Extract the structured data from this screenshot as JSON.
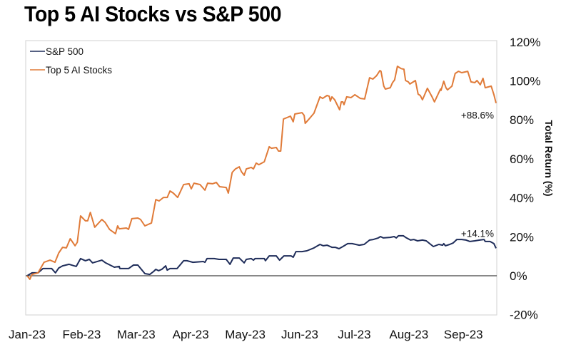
{
  "chart_data": {
    "type": "line",
    "title": "Top 5 AI Stocks vs S&P 500",
    "xlabel": "",
    "ylabel": "Total Return (%)",
    "ylim": [
      -20,
      120
    ],
    "yticks": [
      -20,
      0,
      20,
      40,
      60,
      80,
      100,
      120
    ],
    "ytick_labels": [
      "-20%",
      "0%",
      "20%",
      "40%",
      "60%",
      "80%",
      "100%",
      "120%"
    ],
    "x_unit": "months since Jan-23",
    "xlim": [
      0,
      8.6
    ],
    "xticks": [
      0,
      1,
      2,
      3,
      4,
      5,
      6,
      7,
      8
    ],
    "xtick_labels": [
      "Jan-23",
      "Feb-23",
      "Mar-23",
      "Apr-23",
      "May-23",
      "Jun-23",
      "Jul-23",
      "Aug-23",
      "Sep-23"
    ],
    "grid": false,
    "zero_line": true,
    "legend_position": "top-left",
    "series": [
      {
        "name": "S&P 500",
        "color": "#1f2d5a",
        "end_label": "+14.1%",
        "points": [
          [
            0,
            0
          ],
          [
            0.09,
            1.5
          ],
          [
            0.2,
            1.5
          ],
          [
            0.29,
            3.7
          ],
          [
            0.45,
            3.7
          ],
          [
            0.52,
            1.5
          ],
          [
            0.58,
            4.0
          ],
          [
            0.65,
            5.1
          ],
          [
            0.77,
            5.9
          ],
          [
            0.9,
            4.8
          ],
          [
            0.98,
            8.8
          ],
          [
            1.07,
            7.7
          ],
          [
            1.14,
            8.4
          ],
          [
            1.2,
            6.6
          ],
          [
            1.37,
            8.0
          ],
          [
            1.44,
            6.6
          ],
          [
            1.6,
            4.4
          ],
          [
            1.69,
            4.8
          ],
          [
            1.7,
            3.7
          ],
          [
            1.86,
            3.7
          ],
          [
            1.95,
            5.5
          ],
          [
            2.03,
            5.5
          ],
          [
            2.16,
            1.1
          ],
          [
            2.25,
            0.7
          ],
          [
            2.32,
            2.2
          ],
          [
            2.36,
            3.3
          ],
          [
            2.41,
            2.6
          ],
          [
            2.47,
            3.3
          ],
          [
            2.54,
            5.1
          ],
          [
            2.57,
            2.9
          ],
          [
            2.62,
            3.7
          ],
          [
            2.75,
            3.7
          ],
          [
            2.87,
            7.7
          ],
          [
            2.93,
            7.7
          ],
          [
            3.04,
            6.9
          ],
          [
            3.23,
            7.3
          ],
          [
            3.26,
            6.9
          ],
          [
            3.3,
            8.8
          ],
          [
            3.43,
            8.8
          ],
          [
            3.52,
            8.4
          ],
          [
            3.65,
            8.4
          ],
          [
            3.72,
            5.9
          ],
          [
            3.78,
            9.1
          ],
          [
            3.89,
            9.1
          ],
          [
            3.98,
            6.6
          ],
          [
            4.02,
            8.4
          ],
          [
            4.11,
            8.8
          ],
          [
            4.15,
            8.0
          ],
          [
            4.18,
            8.8
          ],
          [
            4.35,
            8.8
          ],
          [
            4.37,
            7.7
          ],
          [
            4.44,
            10.2
          ],
          [
            4.57,
            10.2
          ],
          [
            4.63,
            8.0
          ],
          [
            4.71,
            10.2
          ],
          [
            4.84,
            10.2
          ],
          [
            4.88,
            9.5
          ],
          [
            4.93,
            12.4
          ],
          [
            5.04,
            12.4
          ],
          [
            5.13,
            12.8
          ],
          [
            5.26,
            14.3
          ],
          [
            5.37,
            16.1
          ],
          [
            5.43,
            15.4
          ],
          [
            5.5,
            15.7
          ],
          [
            5.59,
            14.6
          ],
          [
            5.65,
            14.6
          ],
          [
            5.72,
            13.9
          ],
          [
            5.79,
            15.0
          ],
          [
            5.88,
            16.5
          ],
          [
            5.96,
            16.5
          ],
          [
            6.09,
            15.7
          ],
          [
            6.18,
            16.1
          ],
          [
            6.28,
            18.3
          ],
          [
            6.35,
            18.6
          ],
          [
            6.44,
            19.4
          ],
          [
            6.48,
            20.1
          ],
          [
            6.53,
            19.4
          ],
          [
            6.66,
            19.7
          ],
          [
            6.73,
            20.1
          ],
          [
            6.77,
            19.4
          ],
          [
            6.81,
            20.5
          ],
          [
            6.9,
            20.5
          ],
          [
            6.94,
            19.7
          ],
          [
            7.03,
            18.3
          ],
          [
            7.09,
            18.6
          ],
          [
            7.16,
            17.9
          ],
          [
            7.25,
            18.3
          ],
          [
            7.32,
            17.9
          ],
          [
            7.4,
            16.1
          ],
          [
            7.45,
            15.0
          ],
          [
            7.55,
            16.1
          ],
          [
            7.62,
            15.7
          ],
          [
            7.64,
            16.5
          ],
          [
            7.67,
            15.4
          ],
          [
            7.75,
            16.1
          ],
          [
            7.81,
            16.8
          ],
          [
            7.88,
            18.6
          ],
          [
            7.97,
            18.6
          ],
          [
            8.05,
            18.3
          ],
          [
            8.12,
            17.6
          ],
          [
            8.21,
            17.9
          ],
          [
            8.3,
            18.3
          ],
          [
            8.38,
            18.6
          ],
          [
            8.4,
            17.6
          ],
          [
            8.49,
            17.6
          ],
          [
            8.56,
            16.5
          ],
          [
            8.6,
            14.1
          ]
        ]
      },
      {
        "name": "Top 5 AI Stocks",
        "color": "#e07b39",
        "end_label": "+88.6%",
        "points": [
          [
            0,
            0
          ],
          [
            0.05,
            -1.8
          ],
          [
            0.09,
            0.7
          ],
          [
            0.2,
            1.5
          ],
          [
            0.31,
            6.9
          ],
          [
            0.42,
            8.0
          ],
          [
            0.51,
            6.9
          ],
          [
            0.58,
            11.7
          ],
          [
            0.65,
            14.6
          ],
          [
            0.72,
            14.3
          ],
          [
            0.79,
            19.0
          ],
          [
            0.88,
            15.4
          ],
          [
            0.92,
            17.2
          ],
          [
            0.98,
            30.7
          ],
          [
            1.07,
            28.2
          ],
          [
            1.11,
            28.2
          ],
          [
            1.16,
            32.5
          ],
          [
            1.24,
            24.9
          ],
          [
            1.37,
            28.9
          ],
          [
            1.43,
            27.4
          ],
          [
            1.51,
            23.8
          ],
          [
            1.62,
            21.6
          ],
          [
            1.66,
            25.6
          ],
          [
            1.69,
            24.1
          ],
          [
            1.82,
            24.5
          ],
          [
            1.86,
            23.8
          ],
          [
            1.92,
            29.3
          ],
          [
            2.03,
            29.6
          ],
          [
            2.08,
            28.9
          ],
          [
            2.16,
            25.6
          ],
          [
            2.28,
            27.1
          ],
          [
            2.36,
            39.1
          ],
          [
            2.42,
            38.4
          ],
          [
            2.5,
            40.2
          ],
          [
            2.57,
            40.2
          ],
          [
            2.62,
            43.5
          ],
          [
            2.68,
            42.4
          ],
          [
            2.76,
            40.2
          ],
          [
            2.87,
            46.8
          ],
          [
            2.97,
            47.2
          ],
          [
            3.01,
            44.6
          ],
          [
            3.06,
            47.5
          ],
          [
            3.17,
            46.8
          ],
          [
            3.26,
            43.9
          ],
          [
            3.31,
            47.5
          ],
          [
            3.4,
            47.2
          ],
          [
            3.47,
            47.9
          ],
          [
            3.53,
            45.7
          ],
          [
            3.65,
            45.3
          ],
          [
            3.69,
            42.4
          ],
          [
            3.76,
            53.0
          ],
          [
            3.82,
            54.8
          ],
          [
            3.89,
            55.9
          ],
          [
            3.93,
            53.4
          ],
          [
            3.98,
            51.6
          ],
          [
            4.02,
            54.8
          ],
          [
            4.11,
            55.6
          ],
          [
            4.15,
            54.8
          ],
          [
            4.2,
            57.8
          ],
          [
            4.25,
            57.0
          ],
          [
            4.35,
            58.5
          ],
          [
            4.44,
            66.2
          ],
          [
            4.48,
            65.4
          ],
          [
            4.57,
            65.8
          ],
          [
            4.61,
            64.0
          ],
          [
            4.65,
            64.0
          ],
          [
            4.7,
            80.4
          ],
          [
            4.83,
            81.9
          ],
          [
            4.88,
            79.0
          ],
          [
            4.91,
            83.0
          ],
          [
            5.04,
            83.7
          ],
          [
            5.08,
            82.3
          ],
          [
            5.1,
            78.2
          ],
          [
            5.16,
            80.1
          ],
          [
            5.26,
            83.4
          ],
          [
            5.37,
            91.8
          ],
          [
            5.42,
            91.0
          ],
          [
            5.5,
            92.5
          ],
          [
            5.54,
            92.1
          ],
          [
            5.56,
            89.6
          ],
          [
            5.59,
            91.8
          ],
          [
            5.64,
            90.3
          ],
          [
            5.73,
            85.2
          ],
          [
            5.76,
            89.2
          ],
          [
            5.79,
            89.2
          ],
          [
            5.81,
            87.8
          ],
          [
            5.86,
            91.8
          ],
          [
            5.94,
            91.4
          ],
          [
            6.01,
            92.9
          ],
          [
            6.11,
            91.0
          ],
          [
            6.19,
            90.7
          ],
          [
            6.28,
            101.6
          ],
          [
            6.34,
            100.9
          ],
          [
            6.41,
            102.7
          ],
          [
            6.47,
            105.3
          ],
          [
            6.49,
            104.9
          ],
          [
            6.54,
            97.3
          ],
          [
            6.57,
            95.8
          ],
          [
            6.66,
            96.5
          ],
          [
            6.7,
            99.1
          ],
          [
            6.74,
            100.5
          ],
          [
            6.79,
            107.5
          ],
          [
            6.86,
            106.3
          ],
          [
            6.91,
            106.0
          ],
          [
            6.94,
            100.2
          ],
          [
            6.99,
            99.5
          ],
          [
            7.02,
            98.4
          ],
          [
            7.12,
            100.2
          ],
          [
            7.17,
            93.2
          ],
          [
            7.21,
            92.5
          ],
          [
            7.25,
            90.3
          ],
          [
            7.34,
            96.2
          ],
          [
            7.42,
            92.1
          ],
          [
            7.47,
            89.2
          ],
          [
            7.58,
            95.8
          ],
          [
            7.59,
            95.1
          ],
          [
            7.64,
            99.8
          ],
          [
            7.68,
            96.5
          ],
          [
            7.71,
            95.4
          ],
          [
            7.79,
            97.3
          ],
          [
            7.85,
            103.8
          ],
          [
            7.91,
            104.9
          ],
          [
            7.97,
            104.2
          ],
          [
            8.08,
            104.9
          ],
          [
            8.14,
            99.5
          ],
          [
            8.21,
            99.1
          ],
          [
            8.25,
            100.2
          ],
          [
            8.31,
            98.0
          ],
          [
            8.36,
            101.3
          ],
          [
            8.4,
            96.5
          ],
          [
            8.51,
            97.3
          ],
          [
            8.56,
            92.9
          ],
          [
            8.6,
            88.6
          ]
        ]
      }
    ],
    "annotations": [
      {
        "series": "Top 5 AI Stocks",
        "text": "+88.6%",
        "x": 8.6,
        "y": 88.6,
        "placement": "below-left"
      },
      {
        "series": "S&P 500",
        "text": "+14.1%",
        "x": 8.6,
        "y": 14.1,
        "placement": "above-left"
      }
    ]
  }
}
